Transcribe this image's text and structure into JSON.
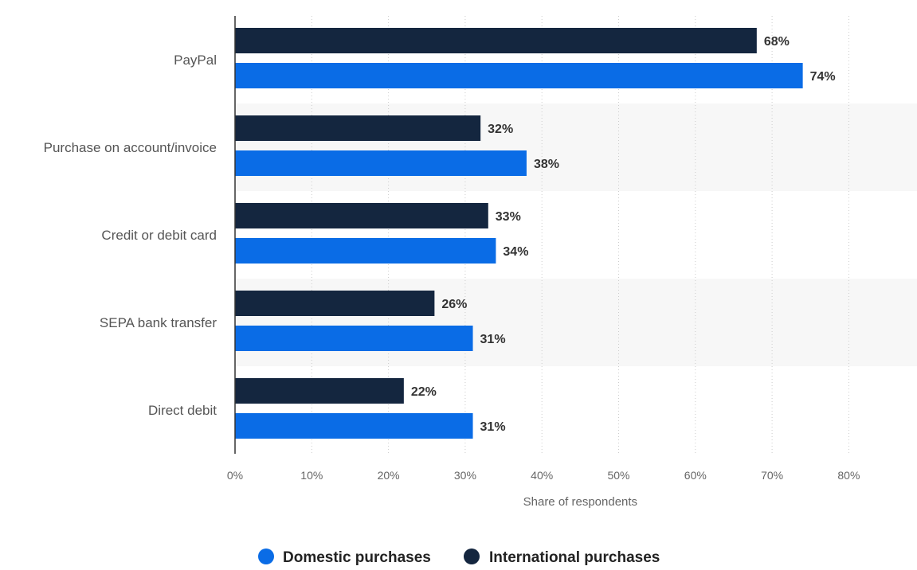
{
  "chart_data": {
    "type": "bar",
    "orientation": "horizontal",
    "categories": [
      "PayPal",
      "Purchase on account/invoice",
      "Credit or debit card",
      "SEPA bank transfer",
      "Direct debit"
    ],
    "series": [
      {
        "name": "International purchases",
        "color": "#14263f",
        "values": [
          68,
          32,
          33,
          26,
          22
        ]
      },
      {
        "name": "Domestic purchases",
        "color": "#0a6ce6",
        "values": [
          74,
          38,
          34,
          31,
          31
        ]
      }
    ],
    "value_labels": {
      "International purchases": [
        "68%",
        "32%",
        "33%",
        "26%",
        "22%"
      ],
      "Domestic purchases": [
        "74%",
        "38%",
        "34%",
        "31%",
        "31%"
      ]
    },
    "xlim": [
      0,
      80
    ],
    "x_ticks": [
      0,
      10,
      20,
      30,
      40,
      50,
      60,
      70,
      80
    ],
    "x_tick_labels": [
      "0%",
      "10%",
      "20%",
      "30%",
      "40%",
      "50%",
      "60%",
      "70%",
      "80%"
    ],
    "xlabel": "Share of respondents",
    "ylabel": "",
    "title": "",
    "grid": true,
    "legend": {
      "position": "bottom",
      "items": [
        {
          "label": "Domestic purchases",
          "color": "#0a6ce6"
        },
        {
          "label": "International purchases",
          "color": "#14263f"
        }
      ]
    }
  }
}
